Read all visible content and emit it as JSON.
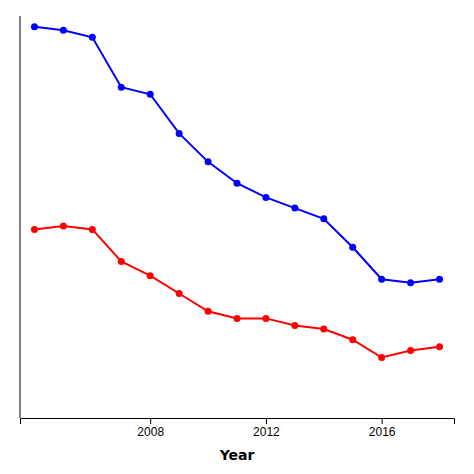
{
  "chart_data": {
    "type": "line",
    "x_label": "Year",
    "x": [
      2004,
      2005,
      2006,
      2007,
      2008,
      2009,
      2010,
      2011,
      2012,
      2013,
      2014,
      2015,
      2016,
      2017,
      2018
    ],
    "series": [
      {
        "color": "#0000FF",
        "marker": "circle",
        "values": [
          105,
          104,
          102,
          88,
          86,
          75,
          67,
          61,
          57,
          54,
          51,
          43,
          34,
          33,
          34
        ]
      },
      {
        "color": "#FF0000",
        "marker": "circle",
        "values": [
          48,
          49,
          48,
          39,
          35,
          30,
          25,
          23,
          23,
          21,
          20,
          17,
          12,
          14,
          15
        ]
      }
    ],
    "xlim": [
      2003.5,
      2018.5
    ],
    "ylim": [
      -5,
      108
    ],
    "xticks": [
      2008,
      2012,
      2016
    ],
    "tick_labels": "x",
    "grid": false
  }
}
